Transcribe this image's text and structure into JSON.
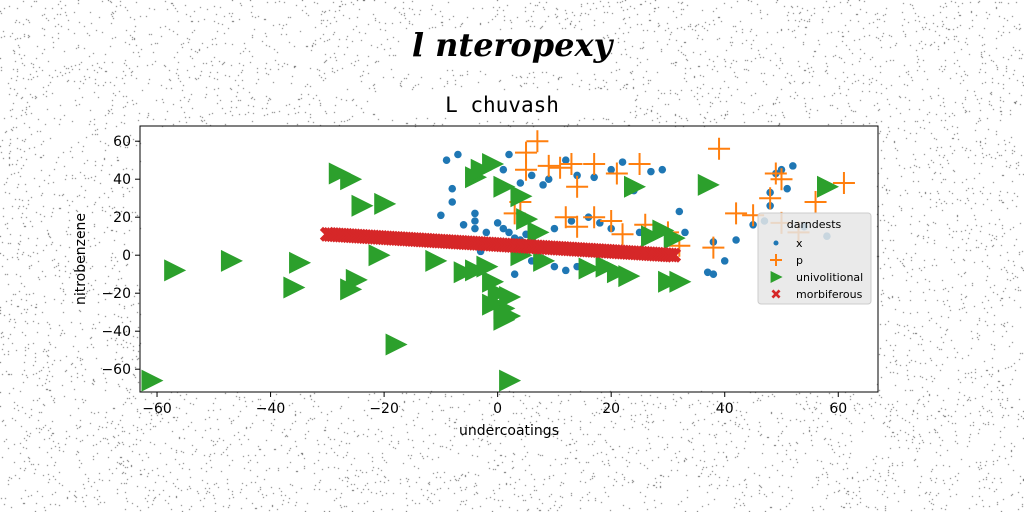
{
  "suptitle": "l nteropexy",
  "chart_data": {
    "type": "scatter",
    "title": "L chuvash",
    "xlabel": "undercoatings",
    "ylabel": "nitrobenzene",
    "xlim": [
      -63,
      67
    ],
    "ylim": [
      -72,
      68
    ],
    "xticks": [
      -60,
      -40,
      -20,
      0,
      20,
      40,
      60
    ],
    "yticks": [
      -60,
      -40,
      -20,
      0,
      20,
      40,
      60
    ],
    "xtick_labels": [
      "−60",
      "−40",
      "−20",
      "0",
      "20",
      "40",
      "60"
    ],
    "ytick_labels": [
      "−60",
      "−40",
      "−20",
      "0",
      "20",
      "40",
      "60"
    ],
    "grid": false,
    "legend": {
      "title": "darndests",
      "placement": "center-right"
    },
    "series": [
      {
        "name": "x",
        "marker": "circle",
        "color": "#1f77b4",
        "points": [
          [
            -9,
            50
          ],
          [
            -7,
            53
          ],
          [
            -8,
            35
          ],
          [
            -8,
            28
          ],
          [
            -10,
            21
          ],
          [
            -4,
            22
          ],
          [
            -6,
            16
          ],
          [
            -4,
            14
          ],
          [
            -4,
            18
          ],
          [
            -5,
            8
          ],
          [
            -3,
            6
          ],
          [
            -2,
            12
          ],
          [
            -3,
            2
          ],
          [
            0,
            17
          ],
          [
            1,
            14
          ],
          [
            2,
            12
          ],
          [
            3,
            9
          ],
          [
            4,
            8
          ],
          [
            5,
            11
          ],
          [
            6,
            8
          ],
          [
            3,
            -10
          ],
          [
            6,
            -3
          ],
          [
            8,
            -2
          ],
          [
            10,
            -6
          ],
          [
            12,
            -8
          ],
          [
            14,
            -6
          ],
          [
            1,
            45
          ],
          [
            2,
            53
          ],
          [
            4,
            38
          ],
          [
            6,
            42
          ],
          [
            8,
            37
          ],
          [
            9,
            40
          ],
          [
            12,
            50
          ],
          [
            14,
            42
          ],
          [
            17,
            41
          ],
          [
            20,
            45
          ],
          [
            22,
            49
          ],
          [
            24,
            34
          ],
          [
            27,
            44
          ],
          [
            29,
            45
          ],
          [
            10,
            14
          ],
          [
            13,
            18
          ],
          [
            16,
            20
          ],
          [
            18,
            17
          ],
          [
            20,
            14
          ],
          [
            25,
            12
          ],
          [
            28,
            14
          ],
          [
            30,
            10
          ],
          [
            32,
            23
          ],
          [
            33,
            12
          ],
          [
            38,
            7
          ],
          [
            37,
            -9
          ],
          [
            38,
            -10
          ],
          [
            40,
            -3
          ],
          [
            42,
            8
          ],
          [
            45,
            16
          ],
          [
            49,
            43
          ],
          [
            50,
            45
          ],
          [
            52,
            47
          ],
          [
            48,
            33
          ],
          [
            47,
            18
          ],
          [
            48,
            26
          ],
          [
            51,
            35
          ],
          [
            54,
            15
          ],
          [
            58,
            10
          ]
        ]
      },
      {
        "name": "p",
        "marker": "plus",
        "color": "#ff7f0e",
        "points": [
          [
            5,
            54
          ],
          [
            7,
            60
          ],
          [
            9,
            47
          ],
          [
            11,
            46
          ],
          [
            13,
            48
          ],
          [
            5,
            45
          ],
          [
            17,
            48
          ],
          [
            21,
            43
          ],
          [
            25,
            48
          ],
          [
            39,
            56
          ],
          [
            49,
            43
          ],
          [
            50,
            40
          ],
          [
            56,
            28
          ],
          [
            61,
            38
          ],
          [
            4,
            28
          ],
          [
            3,
            22
          ],
          [
            12,
            20
          ],
          [
            14,
            15
          ],
          [
            17,
            20
          ],
          [
            20,
            18
          ],
          [
            22,
            11
          ],
          [
            26,
            16
          ],
          [
            30,
            12
          ],
          [
            32,
            5
          ],
          [
            38,
            4
          ],
          [
            42,
            22
          ],
          [
            45,
            21
          ],
          [
            48,
            30
          ],
          [
            50,
            17
          ],
          [
            53,
            12
          ],
          [
            14,
            36
          ]
        ]
      },
      {
        "name": "univolitional",
        "marker": "triangle-right",
        "color": "#2ca02c",
        "points": [
          [
            -28,
            43
          ],
          [
            -26,
            40
          ],
          [
            -24,
            26
          ],
          [
            -20,
            27
          ],
          [
            -21,
            0
          ],
          [
            -25,
            -13
          ],
          [
            -26,
            -18
          ],
          [
            -35,
            -4
          ],
          [
            -36,
            -17
          ],
          [
            -47,
            -3
          ],
          [
            -57,
            -8
          ],
          [
            -61,
            -66
          ],
          [
            -18,
            -47
          ],
          [
            -11,
            -3
          ],
          [
            -6,
            -9
          ],
          [
            -4,
            -8
          ],
          [
            -2,
            -6
          ],
          [
            -1,
            -14
          ],
          [
            0,
            -20
          ],
          [
            2,
            -22
          ],
          [
            -1,
            -26
          ],
          [
            1,
            -28
          ],
          [
            1,
            -34
          ],
          [
            2,
            -32
          ],
          [
            2,
            -66
          ],
          [
            -4,
            41
          ],
          [
            -3,
            45
          ],
          [
            -1,
            48
          ],
          [
            1,
            36
          ],
          [
            4,
            31
          ],
          [
            5,
            19
          ],
          [
            7,
            12
          ],
          [
            4,
            0
          ],
          [
            8,
            -3
          ],
          [
            16,
            -7
          ],
          [
            19,
            -6
          ],
          [
            21,
            -9
          ],
          [
            23,
            -11
          ],
          [
            24,
            36
          ],
          [
            27,
            10
          ],
          [
            29,
            13
          ],
          [
            31,
            9
          ],
          [
            30,
            -14
          ],
          [
            32,
            -14
          ],
          [
            37,
            37
          ],
          [
            58,
            36
          ]
        ]
      },
      {
        "name": "morbiferous",
        "marker": "x",
        "color": "#d62728",
        "line": {
          "x0": -30,
          "y0": 11,
          "x1": 31,
          "y1": 0,
          "count": 130
        }
      }
    ]
  }
}
